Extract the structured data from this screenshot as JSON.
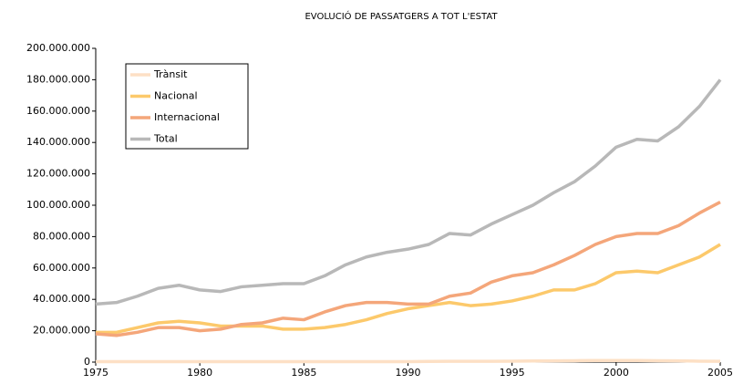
{
  "chart_data": {
    "type": "line",
    "title": "EVOLUCIÓ DE PASSATGERS A TOT L'ESTAT",
    "x": [
      1975,
      1976,
      1977,
      1978,
      1979,
      1980,
      1981,
      1982,
      1983,
      1984,
      1985,
      1986,
      1987,
      1988,
      1989,
      1990,
      1991,
      1992,
      1993,
      1994,
      1995,
      1996,
      1997,
      1998,
      1999,
      2000,
      2001,
      2002,
      2003,
      2004,
      2005
    ],
    "series": [
      {
        "name": "Trànsit",
        "color": "#fde0c5",
        "values": [
          300000,
          300000,
          300000,
          300000,
          300000,
          300000,
          300000,
          300000,
          300000,
          300000,
          300000,
          300000,
          300000,
          300000,
          300000,
          300000,
          400000,
          500000,
          500000,
          500000,
          600000,
          700000,
          800000,
          900000,
          1000000,
          1000000,
          1000000,
          900000,
          800000,
          600000,
          500000
        ]
      },
      {
        "name": "Nacional",
        "color": "#fcc96b",
        "values": [
          19000000,
          19000000,
          22000000,
          25000000,
          26000000,
          25000000,
          23000000,
          23000000,
          23000000,
          21000000,
          21000000,
          22000000,
          24000000,
          27000000,
          31000000,
          34000000,
          36000000,
          38000000,
          36000000,
          37000000,
          39000000,
          42000000,
          46000000,
          46000000,
          50000000,
          57000000,
          58000000,
          57000000,
          62000000,
          67000000,
          75000000
        ]
      },
      {
        "name": "Internacional",
        "color": "#f4a67a",
        "values": [
          18000000,
          17000000,
          19000000,
          22000000,
          22000000,
          20000000,
          21000000,
          24000000,
          25000000,
          28000000,
          27000000,
          32000000,
          36000000,
          38000000,
          38000000,
          37000000,
          37000000,
          42000000,
          44000000,
          51000000,
          55000000,
          57000000,
          62000000,
          68000000,
          75000000,
          80000000,
          82000000,
          82000000,
          87000000,
          95000000,
          102000000
        ]
      },
      {
        "name": "Total",
        "color": "#b8b8b8",
        "values": [
          37000000,
          38000000,
          42000000,
          47000000,
          49000000,
          46000000,
          45000000,
          48000000,
          49000000,
          50000000,
          50000000,
          55000000,
          62000000,
          67000000,
          70000000,
          72000000,
          75000000,
          82000000,
          81000000,
          88000000,
          94000000,
          100000000,
          108000000,
          115000000,
          125000000,
          137000000,
          142000000,
          141000000,
          150000000,
          163000000,
          180000000
        ]
      }
    ],
    "xlim": [
      1975,
      2005
    ],
    "xticks": [
      1975,
      1980,
      1985,
      1990,
      1995,
      2000,
      2005
    ],
    "ylim": [
      0,
      200000000
    ],
    "yticks": [
      0,
      {
        "value": 20000000,
        "label": "20.000.000"
      },
      {
        "value": 40000000,
        "label": "40.000.000"
      },
      {
        "value": 60000000,
        "label": "60.000.000"
      },
      {
        "value": 80000000,
        "label": "80.000.000"
      },
      {
        "value": 100000000,
        "label": "100.000.000"
      },
      {
        "value": 120000000,
        "label": "120.000.000"
      },
      {
        "value": 140000000,
        "label": "140.000.000"
      },
      {
        "value": 160000000,
        "label": "160.000.000"
      },
      {
        "value": 180000000,
        "label": "180.000.000"
      },
      {
        "value": 200000000,
        "label": "200.000.000"
      }
    ],
    "grid": false
  }
}
